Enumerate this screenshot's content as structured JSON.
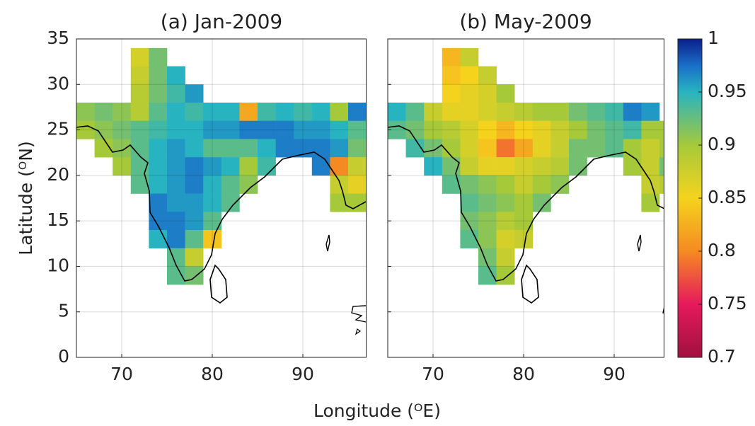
{
  "chart_data": [
    {
      "type": "heatmap",
      "title": "(a) Jan-2009",
      "xlim": [
        65,
        97
      ],
      "ylim": [
        0,
        35
      ],
      "xticks": [
        70,
        80,
        90
      ],
      "yticks": [
        0,
        5,
        10,
        15,
        20,
        25,
        30,
        35
      ],
      "grid": true,
      "lon": [
        66,
        68,
        70,
        72,
        74,
        76,
        78,
        80,
        82,
        84,
        86,
        88,
        90,
        92,
        94,
        96
      ],
      "lat": [
        33,
        31,
        29,
        27,
        25,
        23,
        21,
        19,
        17,
        15,
        13,
        11,
        9
      ],
      "values": [
        [
          null,
          null,
          null,
          0.87,
          0.92,
          null,
          null,
          null,
          null,
          null,
          null,
          null,
          null,
          null,
          null,
          null
        ],
        [
          null,
          null,
          null,
          0.88,
          0.92,
          0.95,
          null,
          null,
          null,
          null,
          null,
          null,
          null,
          null,
          null,
          null
        ],
        [
          null,
          null,
          null,
          0.89,
          0.92,
          0.94,
          0.96,
          null,
          null,
          null,
          null,
          null,
          null,
          null,
          null,
          null
        ],
        [
          0.91,
          0.92,
          0.91,
          0.89,
          0.93,
          0.95,
          0.94,
          0.95,
          0.95,
          0.82,
          0.94,
          0.95,
          0.94,
          0.95,
          0.9,
          0.97
        ],
        [
          0.9,
          0.91,
          0.92,
          0.93,
          0.94,
          0.95,
          0.95,
          0.96,
          0.96,
          0.97,
          0.97,
          0.97,
          0.96,
          0.96,
          0.95,
          0.93
        ],
        [
          null,
          0.9,
          0.91,
          0.93,
          0.95,
          0.96,
          0.95,
          0.93,
          0.93,
          0.93,
          0.95,
          0.97,
          0.97,
          0.97,
          0.96,
          0.92
        ],
        [
          null,
          null,
          0.9,
          0.93,
          0.95,
          0.96,
          0.97,
          0.96,
          0.95,
          0.9,
          0.94,
          null,
          null,
          0.97,
          0.8,
          0.88
        ],
        [
          null,
          null,
          null,
          0.93,
          0.95,
          0.96,
          0.97,
          0.95,
          0.93,
          0.91,
          null,
          null,
          null,
          null,
          0.88,
          0.86
        ],
        [
          null,
          null,
          null,
          null,
          0.97,
          0.96,
          0.96,
          0.95,
          0.93,
          null,
          null,
          null,
          null,
          null,
          0.9,
          0.9
        ],
        [
          null,
          null,
          null,
          null,
          0.97,
          0.97,
          0.96,
          0.93,
          null,
          null,
          null,
          null,
          null,
          null,
          null,
          null
        ],
        [
          null,
          null,
          null,
          null,
          0.95,
          0.97,
          0.93,
          0.84,
          null,
          null,
          null,
          null,
          null,
          null,
          null,
          null
        ],
        [
          null,
          null,
          null,
          null,
          null,
          0.93,
          0.88,
          null,
          null,
          null,
          null,
          null,
          null,
          null,
          null,
          null
        ],
        [
          null,
          null,
          null,
          null,
          null,
          0.93,
          0.92,
          null,
          null,
          null,
          null,
          null,
          null,
          null,
          null,
          null
        ]
      ]
    },
    {
      "type": "heatmap",
      "title": "(b) May-2009",
      "xlim": [
        65,
        95.5
      ],
      "ylim": [
        0,
        35
      ],
      "xticks": [
        70,
        80,
        90
      ],
      "yticks": [
        0,
        5,
        10,
        15,
        20,
        25,
        30,
        35
      ],
      "grid": true,
      "lon": [
        66,
        68,
        70,
        72,
        74,
        76,
        78,
        80,
        82,
        84,
        86,
        88,
        90,
        92,
        94,
        96
      ],
      "lat": [
        33,
        31,
        29,
        27,
        25,
        23,
        21,
        19,
        17,
        15,
        13,
        11,
        9
      ],
      "values": [
        [
          null,
          null,
          null,
          0.83,
          0.88,
          null,
          null,
          null,
          null,
          null,
          null,
          null,
          null,
          null,
          null,
          null
        ],
        [
          null,
          null,
          null,
          0.84,
          0.85,
          0.88,
          null,
          null,
          null,
          null,
          null,
          null,
          null,
          null,
          null,
          null
        ],
        [
          null,
          null,
          null,
          0.85,
          0.86,
          0.87,
          0.9,
          null,
          null,
          null,
          null,
          null,
          null,
          null,
          null,
          null
        ],
        [
          0.95,
          0.93,
          0.88,
          0.86,
          0.86,
          0.87,
          0.88,
          0.89,
          0.9,
          0.9,
          0.92,
          0.93,
          0.94,
          0.97,
          0.96,
          null
        ],
        [
          0.93,
          0.92,
          0.9,
          0.89,
          0.87,
          0.85,
          0.83,
          0.85,
          0.86,
          0.88,
          0.9,
          0.92,
          0.93,
          0.94,
          0.9,
          0.9
        ],
        [
          null,
          0.94,
          0.92,
          0.9,
          0.87,
          0.84,
          0.79,
          0.82,
          0.86,
          0.88,
          0.92,
          0.92,
          0.93,
          0.9,
          0.88,
          0.9
        ],
        [
          null,
          null,
          0.95,
          0.92,
          0.88,
          0.86,
          0.86,
          0.87,
          0.88,
          0.89,
          0.92,
          null,
          null,
          0.9,
          0.88,
          0.92
        ],
        [
          null,
          null,
          null,
          0.93,
          0.92,
          0.91,
          0.9,
          0.88,
          0.9,
          0.91,
          null,
          null,
          null,
          null,
          0.88,
          0.89
        ],
        [
          null,
          null,
          null,
          null,
          0.93,
          0.92,
          0.91,
          0.9,
          0.92,
          null,
          null,
          null,
          null,
          null,
          0.9,
          null
        ],
        [
          null,
          null,
          null,
          null,
          0.92,
          0.91,
          0.89,
          0.9,
          null,
          null,
          null,
          null,
          null,
          null,
          null,
          null
        ],
        [
          null,
          null,
          null,
          null,
          0.93,
          0.91,
          0.87,
          0.88,
          null,
          null,
          null,
          null,
          null,
          null,
          null,
          null
        ],
        [
          null,
          null,
          null,
          null,
          null,
          0.92,
          0.88,
          null,
          null,
          null,
          null,
          null,
          null,
          null,
          null,
          null
        ],
        [
          null,
          null,
          null,
          null,
          null,
          0.93,
          0.9,
          null,
          null,
          null,
          null,
          null,
          null,
          null,
          null,
          null
        ]
      ]
    }
  ],
  "xlabel": "Longitude (ᴼE)",
  "ylabel": "Latitude (ᴼN)",
  "colorbar": {
    "lim": [
      0.7,
      1
    ],
    "ticks": [
      0.7,
      0.75,
      0.8,
      0.85,
      0.9,
      0.95,
      1
    ],
    "colormap": [
      [
        0.7,
        "#a0113f"
      ],
      [
        0.75,
        "#e6195c"
      ],
      [
        0.8,
        "#f58a22"
      ],
      [
        0.85,
        "#f5d31d"
      ],
      [
        0.9,
        "#a6c93a"
      ],
      [
        0.95,
        "#28b3c1"
      ],
      [
        0.975,
        "#1a6fc8"
      ],
      [
        1,
        "#0b1f8a"
      ]
    ]
  }
}
